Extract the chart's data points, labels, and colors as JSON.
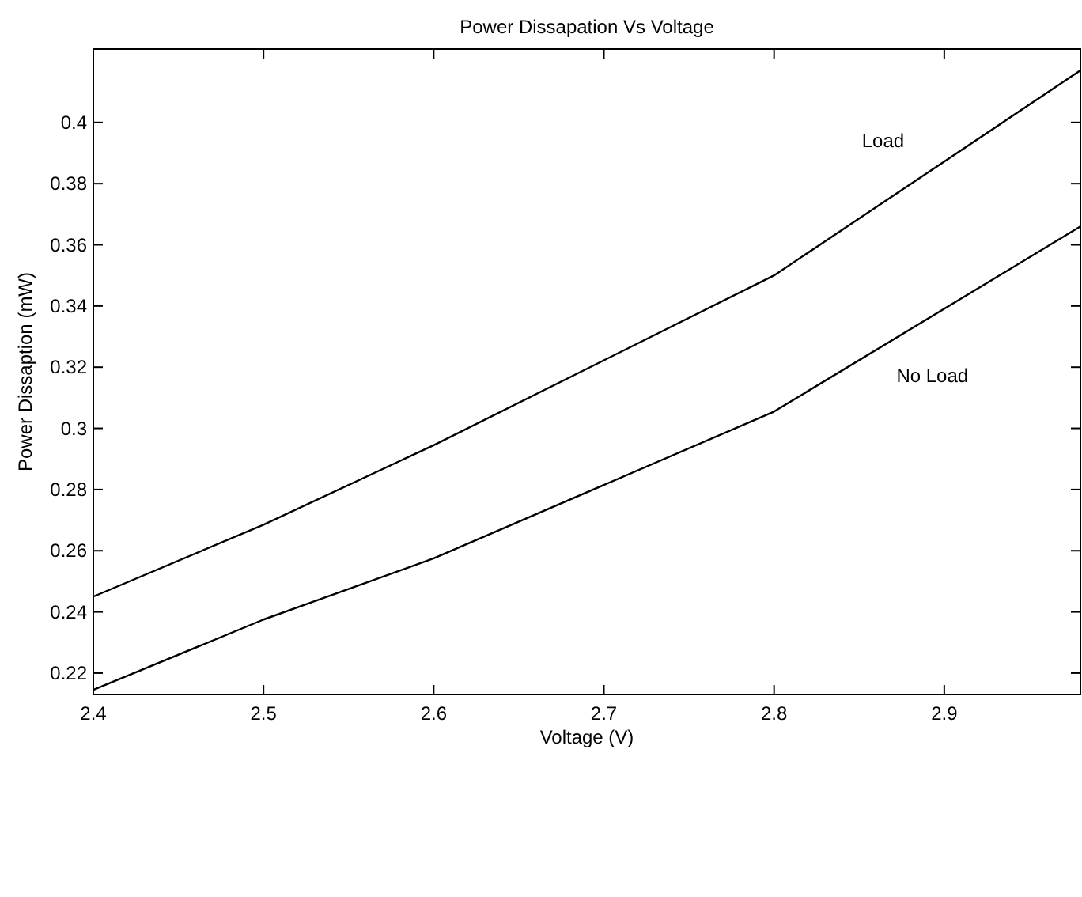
{
  "chart_data": {
    "type": "line",
    "title": "Power Dissapation Vs Voltage",
    "xlabel": "Voltage (V)",
    "ylabel": "Power Dissaption (mW)",
    "xlim": [
      2.4,
      2.98
    ],
    "xticks": [
      2.4,
      2.5,
      2.6,
      2.7,
      2.8,
      2.9
    ],
    "ylim": [
      0.213,
      0.424
    ],
    "yticks": [
      0.22,
      0.24,
      0.26,
      0.28,
      0.3,
      0.32,
      0.34,
      0.36,
      0.38,
      0.4
    ],
    "grid": false,
    "marker": "none",
    "line_style": "solid",
    "series": [
      {
        "name": "Load",
        "color": "#000000",
        "x": [
          2.4,
          2.5,
          2.6,
          2.8,
          2.98
        ],
        "values": [
          0.245,
          0.2685,
          0.2945,
          0.35,
          0.417
        ]
      },
      {
        "name": "No Load",
        "color": "#000000",
        "x": [
          2.4,
          2.5,
          2.6,
          2.8,
          2.98
        ],
        "values": [
          0.2145,
          0.2375,
          0.2575,
          0.3055,
          0.366
        ]
      }
    ]
  }
}
